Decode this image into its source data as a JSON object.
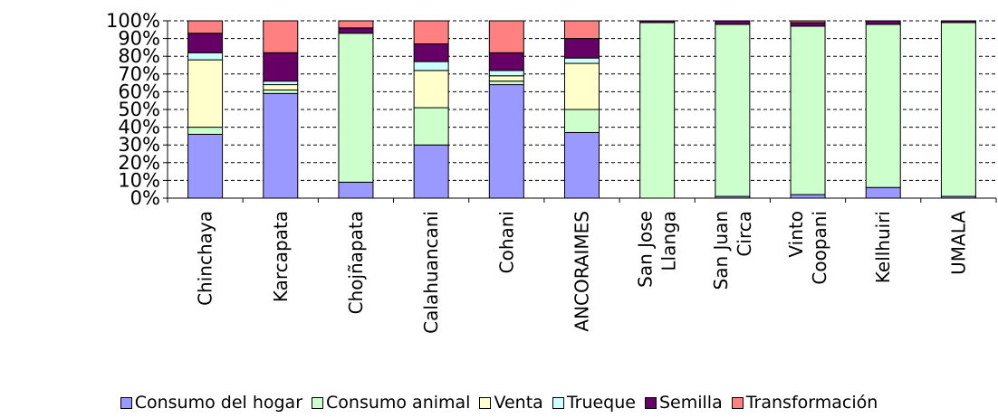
{
  "chart_data": {
    "type": "bar",
    "stacked": "percent",
    "title": "",
    "xlabel": "",
    "ylabel": "",
    "ylim": [
      0,
      100
    ],
    "yticks": [
      "0%",
      "10%",
      "20%",
      "30%",
      "40%",
      "50%",
      "60%",
      "70%",
      "80%",
      "90%",
      "100%"
    ],
    "grid": "horizontal dashed",
    "legend_position": "bottom",
    "categories": [
      [
        "Chinchaya"
      ],
      [
        "Karcapata"
      ],
      [
        "Chojñapata"
      ],
      [
        "Calahuancani"
      ],
      [
        "Cohani"
      ],
      [
        "ANCORAIMES"
      ],
      [
        "San Jose",
        "Llanga"
      ],
      [
        "San Juan",
        "Circa"
      ],
      [
        "Vinto",
        "Coopani"
      ],
      [
        "Kellhuiri"
      ],
      [
        "UMALA"
      ]
    ],
    "series": [
      {
        "name": "Consumo del hogar",
        "color": "#9999ff",
        "values": [
          36,
          59,
          9,
          30,
          64,
          37,
          0,
          1,
          2,
          6,
          1
        ]
      },
      {
        "name": "Consumo animal",
        "color": "#ccffcc",
        "values": [
          4,
          2,
          84,
          21,
          2,
          13,
          99,
          97,
          95,
          92,
          98
        ]
      },
      {
        "name": "Venta",
        "color": "#ffffcc",
        "values": [
          38,
          3,
          0,
          21,
          3,
          26,
          0,
          0,
          0,
          0,
          0
        ]
      },
      {
        "name": "Trueque",
        "color": "#ccffff",
        "values": [
          4,
          2,
          0,
          5,
          3,
          3,
          0,
          0,
          0,
          0,
          0
        ]
      },
      {
        "name": "Semilla",
        "color": "#660066",
        "values": [
          11,
          16,
          3,
          10,
          10,
          11,
          1,
          2,
          2,
          2,
          1
        ]
      },
      {
        "name": "Transformación",
        "color": "#ff8080",
        "values": [
          7,
          18,
          4,
          13,
          18,
          10,
          0,
          0,
          1,
          0,
          0
        ]
      }
    ]
  }
}
